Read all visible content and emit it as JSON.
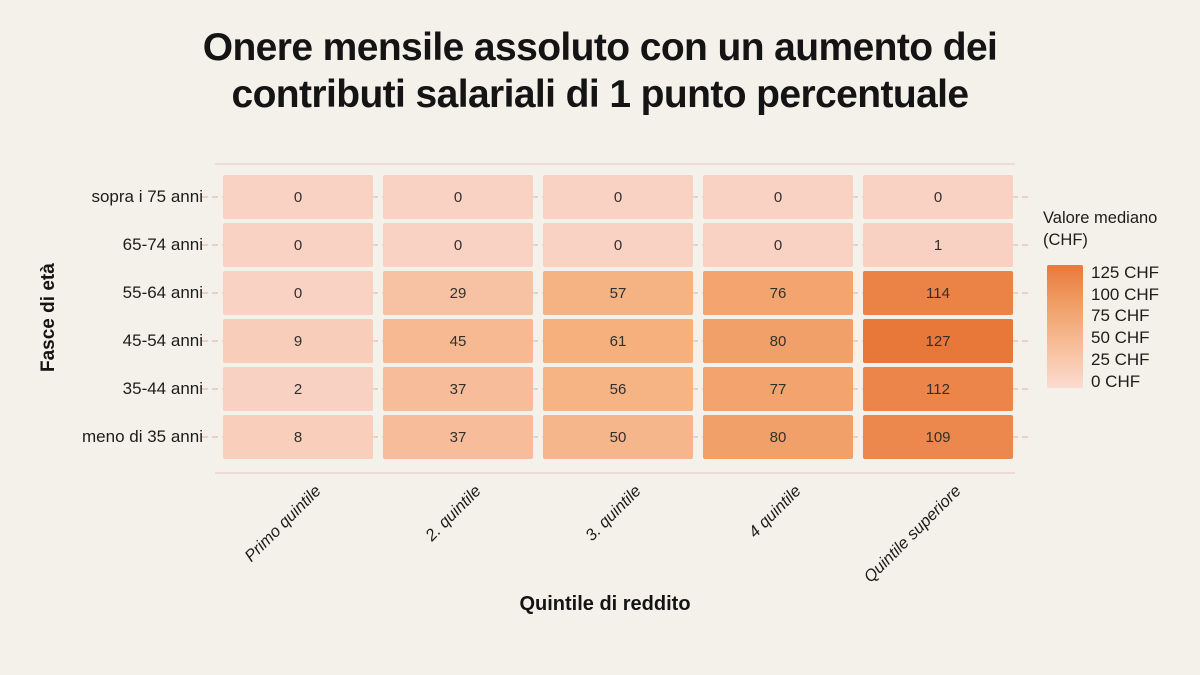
{
  "title": {
    "line1": "Onere mensile assoluto con un aumento dei",
    "line2": "contributi salariali di 1 punto percentuale"
  },
  "chart_data": {
    "type": "heatmap",
    "title": "Onere mensile assoluto con un aumento dei contributi salariali di 1 punto percentuale",
    "xlabel": "Quintile di reddito",
    "ylabel": "Fasce di età",
    "x_categories": [
      "Primo quintile",
      "2. quintile",
      "3. quintile",
      "4 quintile",
      "Quintile superiore"
    ],
    "y_categories": [
      "sopra i 75 anni",
      "65-74 anni",
      "55-64 anni",
      "45-54 anni",
      "35-44 anni",
      "meno di 35 anni"
    ],
    "values": [
      [
        0,
        0,
        0,
        0,
        0
      ],
      [
        0,
        0,
        0,
        0,
        1
      ],
      [
        0,
        29,
        57,
        76,
        114
      ],
      [
        9,
        45,
        61,
        80,
        127
      ],
      [
        2,
        37,
        56,
        77,
        112
      ],
      [
        8,
        37,
        50,
        80,
        109
      ]
    ],
    "legend": {
      "title": "Valore mediano (CHF)",
      "tick_labels": [
        "125 CHF",
        "100 CHF",
        "75 CHF",
        "50 CHF",
        "25 CHF",
        "0 CHF"
      ]
    },
    "color_scale": {
      "min_value": 0,
      "max_value": 127,
      "stops": [
        {
          "value": 0,
          "color": "#f9d2c4"
        },
        {
          "value": 64,
          "color": "#f5ae7b"
        },
        {
          "value": 127,
          "color": "#e8783a"
        }
      ]
    },
    "grid": "dashed-horizontal",
    "legend_position": "right"
  },
  "colors": {
    "background": "#f4f1ea",
    "title_text": "#141414",
    "label_text": "#1e1c1a",
    "cell_text": "#33302c",
    "grid_dash": "#ecd0c6",
    "plot_border": "#f0dbd4",
    "scale_low": "#f9d2c4",
    "scale_high": "#e8783a"
  }
}
